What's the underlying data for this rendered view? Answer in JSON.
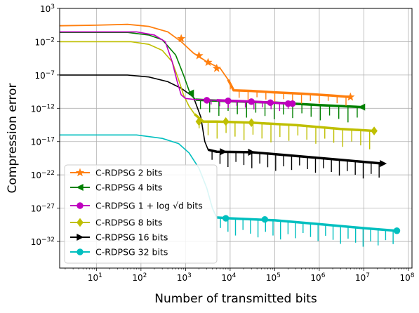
{
  "chart_data": {
    "type": "line",
    "xlabel": "Number of transmitted bits",
    "ylabel": "Compression error",
    "x_scale": "log",
    "y_scale": "log",
    "xlim": [
      1.5,
      120000000
    ],
    "ylim": [
      1e-36,
      1000.0
    ],
    "grid": true,
    "legend_position": "lower-left",
    "x_ticks": [
      {
        "value": 10,
        "base": "10",
        "exp": "1"
      },
      {
        "value": 100,
        "base": "10",
        "exp": "2"
      },
      {
        "value": 1000,
        "base": "10",
        "exp": "3"
      },
      {
        "value": 10000,
        "base": "10",
        "exp": "4"
      },
      {
        "value": 100000,
        "base": "10",
        "exp": "5"
      },
      {
        "value": 1000000,
        "base": "10",
        "exp": "6"
      },
      {
        "value": 10000000,
        "base": "10",
        "exp": "7"
      },
      {
        "value": 100000000,
        "base": "10",
        "exp": "8"
      }
    ],
    "y_ticks": [
      {
        "value": 1000.0,
        "base": "10",
        "exp": "3"
      },
      {
        "value": 0.01,
        "base": "10",
        "exp": "−2"
      },
      {
        "value": 1e-07,
        "base": "10",
        "exp": "−7"
      },
      {
        "value": 1e-12,
        "base": "10",
        "exp": "−12"
      },
      {
        "value": 1e-17,
        "base": "10",
        "exp": "−17"
      },
      {
        "value": 1e-22,
        "base": "10",
        "exp": "−22"
      },
      {
        "value": 1e-27,
        "base": "10",
        "exp": "−27"
      },
      {
        "value": 1e-32,
        "base": "10",
        "exp": "−32"
      }
    ],
    "series": [
      {
        "name": "C-RDPSG 2 bits",
        "legend_prefix": "C-RDPSG 2 bits",
        "legend_math": "",
        "legend_suffix": "",
        "color": "#ff7f0e",
        "marker": "star",
        "points": [
          [
            1.5,
            2.5
          ],
          [
            10,
            3
          ],
          [
            50,
            4
          ],
          [
            150,
            2
          ],
          [
            400,
            0.3
          ],
          [
            800,
            0.01
          ],
          [
            1500,
            0.0002
          ],
          [
            3000,
            1e-05
          ],
          [
            6000,
            1e-06
          ],
          [
            9000,
            2e-08
          ],
          [
            12000,
            5e-10
          ],
          [
            30000,
            4e-10
          ],
          [
            100000,
            2.5e-10
          ],
          [
            500000,
            1.5e-10
          ],
          [
            2000000,
            8e-11
          ],
          [
            5000000,
            5e-11
          ]
        ],
        "spike_start": 8000,
        "spike_end": 5000000,
        "spike_depth_decades": 1.5,
        "spike_count": 14,
        "marker_points": [
          [
            800,
            0.03
          ],
          [
            2000,
            8e-05
          ],
          [
            3200,
            8e-06
          ],
          [
            5000,
            1e-06
          ]
        ]
      },
      {
        "name": "C-RDPSG 4 bits",
        "legend_prefix": "C-RDPSG 4 bits",
        "legend_math": "",
        "legend_suffix": "",
        "color": "#008000",
        "marker": "triangle-left",
        "points": [
          [
            1.5,
            0.25
          ],
          [
            10,
            0.25
          ],
          [
            50,
            0.25
          ],
          [
            150,
            0.1
          ],
          [
            300,
            0.02
          ],
          [
            600,
            0.0001
          ],
          [
            900,
            1e-07
          ],
          [
            1300,
            1e-10
          ],
          [
            1700,
            2e-11
          ],
          [
            3000,
            1.6e-11
          ],
          [
            10000,
            1.2e-11
          ],
          [
            100000,
            7e-12
          ],
          [
            1000000,
            3e-12
          ],
          [
            9000000,
            1.5e-12
          ]
        ],
        "spike_start": 1700,
        "spike_end": 9000000,
        "spike_depth_decades": 2.5,
        "spike_count": 18,
        "marker_points": [
          [
            1300,
            2e-10
          ]
        ]
      },
      {
        "name": "C-RDPSG 1+log√d bits",
        "legend_prefix": "C-RDPSG ",
        "legend_math": "1 + log √d",
        "legend_suffix": " bits",
        "color": "#bf00bf",
        "marker": "circle",
        "points": [
          [
            1.5,
            0.3
          ],
          [
            10,
            0.3
          ],
          [
            80,
            0.3
          ],
          [
            200,
            0.1
          ],
          [
            350,
            0.01
          ],
          [
            500,
            1e-05
          ],
          [
            650,
            1e-08
          ],
          [
            800,
            1e-10
          ],
          [
            1000,
            3e-11
          ],
          [
            1500,
            2.2e-11
          ],
          [
            5000,
            1.6e-11
          ],
          [
            30000,
            1e-11
          ],
          [
            250000,
            5e-12
          ]
        ],
        "spike_start": 3000,
        "spike_end": 250000,
        "spike_depth_decades": 1.2,
        "spike_count": 10,
        "marker_points": [
          [
            3000,
            1.6e-11
          ],
          [
            9000,
            1.3e-11
          ],
          [
            30000,
            1e-11
          ],
          [
            80000,
            7e-12
          ],
          [
            200000,
            5e-12
          ]
        ]
      },
      {
        "name": "C-RDPSG 8 bits",
        "legend_prefix": "C-RDPSG 8 bits",
        "legend_math": "",
        "legend_suffix": "",
        "color": "#bfbf00",
        "marker": "diamond",
        "points": [
          [
            1.5,
            0.01
          ],
          [
            10,
            0.01
          ],
          [
            60,
            0.01
          ],
          [
            150,
            0.004
          ],
          [
            300,
            0.0005
          ],
          [
            500,
            1e-05
          ],
          [
            700,
            2e-08
          ],
          [
            900,
            1e-10
          ],
          [
            1200,
            2e-12
          ],
          [
            1600,
            1.3e-13
          ],
          [
            2500,
            1e-14
          ],
          [
            5000,
            1e-14
          ],
          [
            30000,
            7e-15
          ],
          [
            300000,
            3e-15
          ],
          [
            3000000,
            8e-16
          ],
          [
            17000000,
            4e-16
          ]
        ],
        "spike_start": 1600,
        "spike_end": 17000000,
        "spike_depth_decades": 2.8,
        "spike_count": 20,
        "marker_points": [
          [
            2000,
            1e-14
          ],
          [
            8000,
            1e-14
          ],
          [
            30000,
            7e-15
          ]
        ]
      },
      {
        "name": "C-RDPSG 16 bits",
        "legend_prefix": "C-RDPSG 16 bits",
        "legend_math": "",
        "legend_suffix": "",
        "color": "#000000",
        "marker": "triangle-right",
        "points": [
          [
            1.5,
            1e-07
          ],
          [
            10,
            1e-07
          ],
          [
            50,
            1e-07
          ],
          [
            150,
            5e-08
          ],
          [
            400,
            1e-08
          ],
          [
            800,
            1e-09
          ],
          [
            1500,
            5e-11
          ],
          [
            2200,
            5e-14
          ],
          [
            2700,
            1e-17
          ],
          [
            3200,
            6e-19
          ],
          [
            5000,
            3e-19
          ],
          [
            30000,
            2.5e-19
          ],
          [
            300000,
            7e-20
          ],
          [
            3000000,
            1.8e-20
          ],
          [
            27000000,
            5e-21
          ]
        ],
        "spike_start": 3200,
        "spike_end": 27000000,
        "spike_depth_decades": 2.5,
        "spike_count": 22,
        "marker_points": [
          [
            7000,
            3e-19
          ],
          [
            30000,
            2.5e-19
          ]
        ]
      },
      {
        "name": "C-RDPSG 32 bits",
        "legend_prefix": "C-RDPSG 32 bits",
        "legend_math": "",
        "legend_suffix": "",
        "color": "#00bfbf",
        "marker": "circle",
        "points": [
          [
            1.5,
            1e-16
          ],
          [
            10,
            1e-16
          ],
          [
            80,
            1e-16
          ],
          [
            300,
            3e-17
          ],
          [
            700,
            5e-18
          ],
          [
            1200,
            2e-19
          ],
          [
            2000,
            1e-21
          ],
          [
            3000,
            1e-24
          ],
          [
            4000,
            1e-27
          ],
          [
            5000,
            4e-29
          ],
          [
            10000,
            3e-29
          ],
          [
            100000,
            1.5e-29
          ],
          [
            1000000,
            4e-30
          ],
          [
            10000000,
            1e-30
          ],
          [
            55000000,
            4e-31
          ]
        ],
        "spike_start": 5000,
        "spike_end": 55000000,
        "spike_depth_decades": 2.8,
        "spike_count": 24,
        "marker_points": [
          [
            8000,
            3e-29
          ],
          [
            60000,
            2e-29
          ],
          [
            55000000,
            4e-31
          ]
        ]
      }
    ]
  }
}
